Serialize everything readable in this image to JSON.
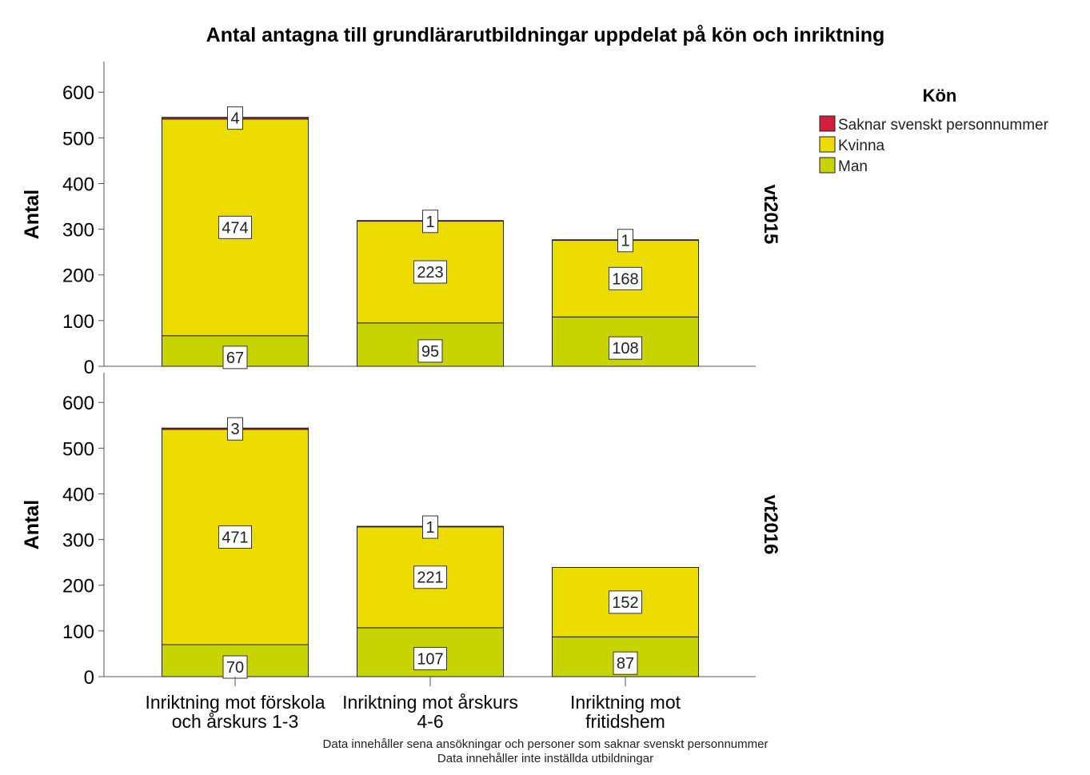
{
  "chart_data": {
    "type": "bar",
    "stacked": true,
    "title": "Antal antagna till grundlärarutbildningar uppdelat på kön och inriktning",
    "ylabel": "Antal",
    "ylim": [
      0,
      650
    ],
    "yticks": [
      0,
      100,
      200,
      300,
      400,
      500,
      600
    ],
    "categories": [
      [
        "Inriktning mot förskola",
        "och årskurs 1-3"
      ],
      [
        "Inriktning mot årskurs",
        "4-6"
      ],
      [
        "Inriktning mot",
        "fritidshem"
      ]
    ],
    "legend": {
      "title": "Kön",
      "position": "right",
      "items": [
        {
          "name": "Saknar svenskt personnummer",
          "color": "#d21f3c"
        },
        {
          "name": "Kvinna",
          "color": "#eddc00"
        },
        {
          "name": "Man",
          "color": "#c8d400"
        }
      ]
    },
    "panels": [
      {
        "name": "vt2015",
        "series": [
          {
            "name": "Man",
            "values": [
              67,
              95,
              108
            ]
          },
          {
            "name": "Kvinna",
            "values": [
              474,
              223,
              168
            ]
          },
          {
            "name": "Saknar svenskt personnummer",
            "values": [
              4,
              1,
              1
            ]
          }
        ]
      },
      {
        "name": "vt2016",
        "series": [
          {
            "name": "Man",
            "values": [
              70,
              107,
              87
            ]
          },
          {
            "name": "Kvinna",
            "values": [
              471,
              221,
              152
            ]
          },
          {
            "name": "Saknar svenskt personnummer",
            "values": [
              3,
              1,
              null
            ]
          }
        ]
      }
    ],
    "footnotes": [
      "Data innehåller sena ansökningar och personer som saknar svenskt personnummer",
      "Data innehåller inte inställda utbildningar"
    ]
  }
}
